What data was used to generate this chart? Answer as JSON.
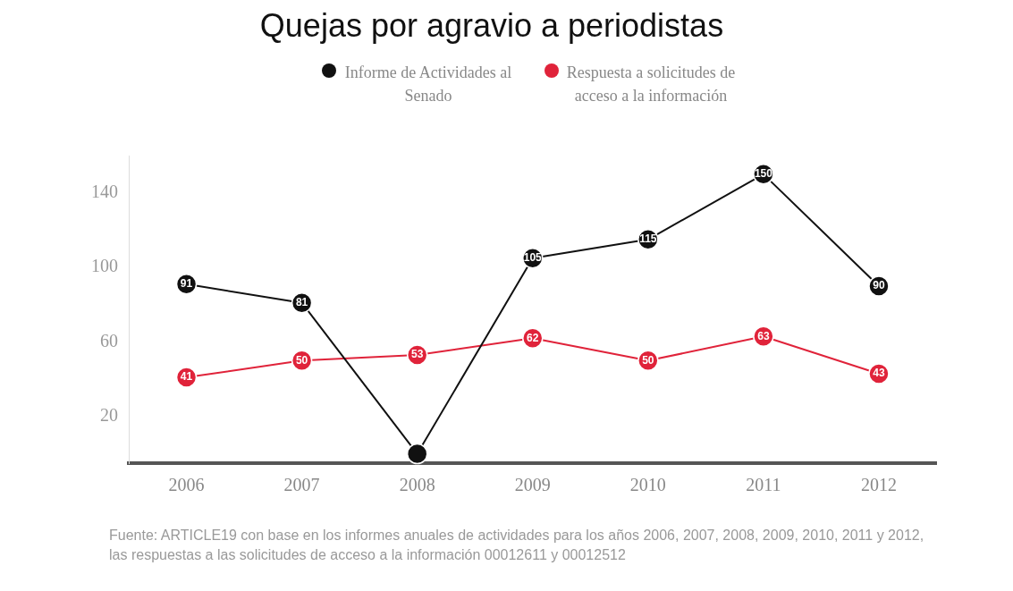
{
  "chart_data": {
    "type": "line",
    "title": "Quejas por agravio a periodistas",
    "categories": [
      "2006",
      "2007",
      "2008",
      "2009",
      "2010",
      "2011",
      "2012"
    ],
    "series": [
      {
        "name": "Informe de Actividades al Senado",
        "color": "#111111",
        "values": [
          91,
          81,
          0,
          105,
          115,
          150,
          90
        ],
        "value_labels": [
          "91",
          "81",
          null,
          "105",
          "115",
          "150",
          "90"
        ]
      },
      {
        "name": "Respuesta a solicitudes de acceso a la información",
        "color": "#e0233a",
        "values": [
          41,
          50,
          53,
          62,
          50,
          63,
          43
        ],
        "value_labels": [
          "41",
          "50",
          "53",
          "62",
          "50",
          "63",
          "43"
        ]
      }
    ],
    "ylim": [
      -5,
      160
    ],
    "yticks": [
      20,
      60,
      100,
      140
    ],
    "grid": false,
    "legend": "top",
    "marker": "circle",
    "line_style": "solid",
    "annotations": [
      "Fuente: ARTICLE19 con base en los informes anuales de actividades para los años 2006, 2007, 2008, 2009, 2010, 2011 y 2012,  las respuestas a las solicitudes de acceso a la información 00012611 y 00012512"
    ]
  }
}
